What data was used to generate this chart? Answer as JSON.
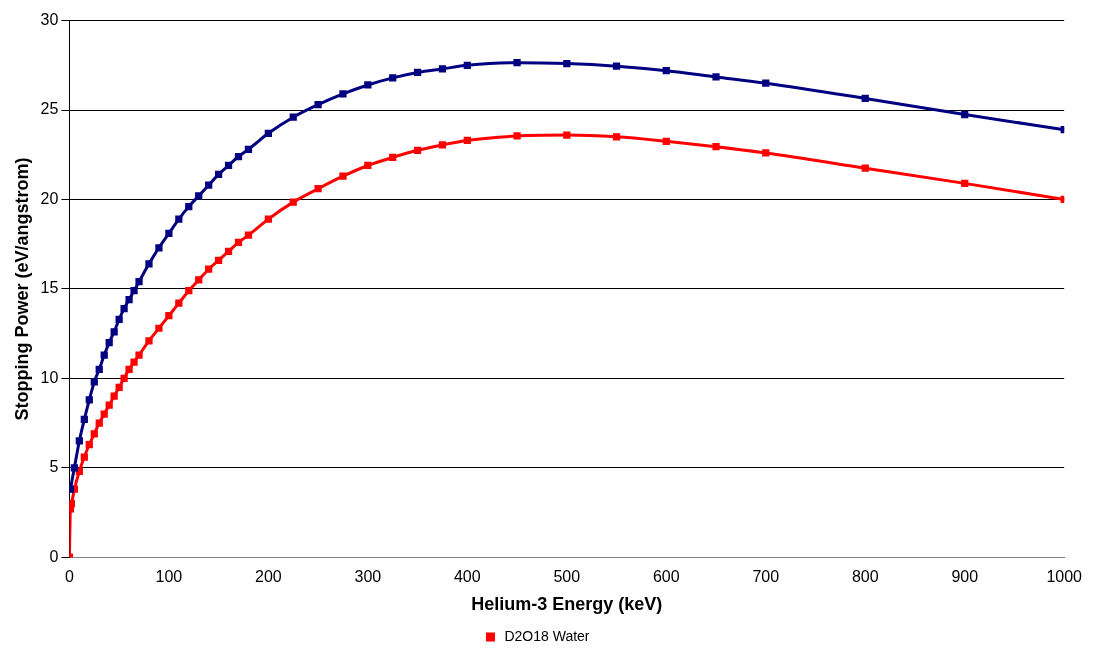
{
  "chart_data": {
    "type": "line",
    "xlabel": "Helium-3 Energy (keV)",
    "ylabel": "Stopping Power (eV/angstrom)",
    "xlim": [
      0,
      1000
    ],
    "xticks": [
      0,
      100,
      200,
      300,
      400,
      500,
      600,
      700,
      800,
      900,
      1000
    ],
    "ylim": [
      0,
      30
    ],
    "yticks": [
      0,
      5,
      10,
      15,
      20,
      25,
      30
    ],
    "grid": "y",
    "legend": "bottom",
    "marker": "square",
    "line_style": "solid",
    "series": [
      {
        "color": "#000080",
        "x": [
          1,
          5,
          10,
          15,
          20,
          25,
          30,
          35,
          40,
          45,
          50,
          55,
          60,
          65,
          70,
          80,
          90,
          100,
          110,
          120,
          130,
          140,
          150,
          160,
          170,
          180,
          200,
          225,
          250,
          275,
          300,
          325,
          350,
          375,
          400,
          450,
          500,
          550,
          600,
          650,
          700,
          800,
          900,
          1000
        ],
        "values": [
          3.8,
          5.0,
          6.5,
          7.7,
          8.8,
          9.8,
          10.5,
          11.3,
          12.0,
          12.6,
          13.3,
          13.9,
          14.4,
          14.9,
          15.4,
          16.4,
          17.3,
          18.1,
          18.9,
          19.6,
          20.2,
          20.8,
          21.4,
          21.9,
          22.4,
          22.8,
          23.7,
          24.6,
          25.3,
          25.9,
          26.4,
          26.8,
          27.1,
          27.3,
          27.5,
          27.65,
          27.6,
          27.45,
          27.2,
          26.85,
          26.5,
          25.65,
          24.75,
          23.9
        ]
      },
      {
        "name": "D2O18 Water",
        "color": "#ff0000",
        "x": [
          0,
          1,
          2,
          5,
          10,
          15,
          20,
          25,
          30,
          35,
          40,
          45,
          50,
          55,
          60,
          65,
          70,
          80,
          90,
          100,
          110,
          120,
          130,
          140,
          150,
          160,
          170,
          180,
          200,
          225,
          250,
          275,
          300,
          325,
          350,
          375,
          400,
          450,
          500,
          550,
          600,
          650,
          700,
          800,
          900,
          1000
        ],
        "values": [
          0,
          2.7,
          3.0,
          3.8,
          4.8,
          5.6,
          6.3,
          6.9,
          7.5,
          8.0,
          8.5,
          9.0,
          9.5,
          10.0,
          10.5,
          10.9,
          11.3,
          12.1,
          12.8,
          13.5,
          14.2,
          14.9,
          15.5,
          16.1,
          16.6,
          17.1,
          17.6,
          18.0,
          18.9,
          19.85,
          20.6,
          21.3,
          21.9,
          22.35,
          22.75,
          23.05,
          23.3,
          23.55,
          23.6,
          23.5,
          23.25,
          22.95,
          22.6,
          21.75,
          20.9,
          20.0
        ]
      }
    ]
  }
}
